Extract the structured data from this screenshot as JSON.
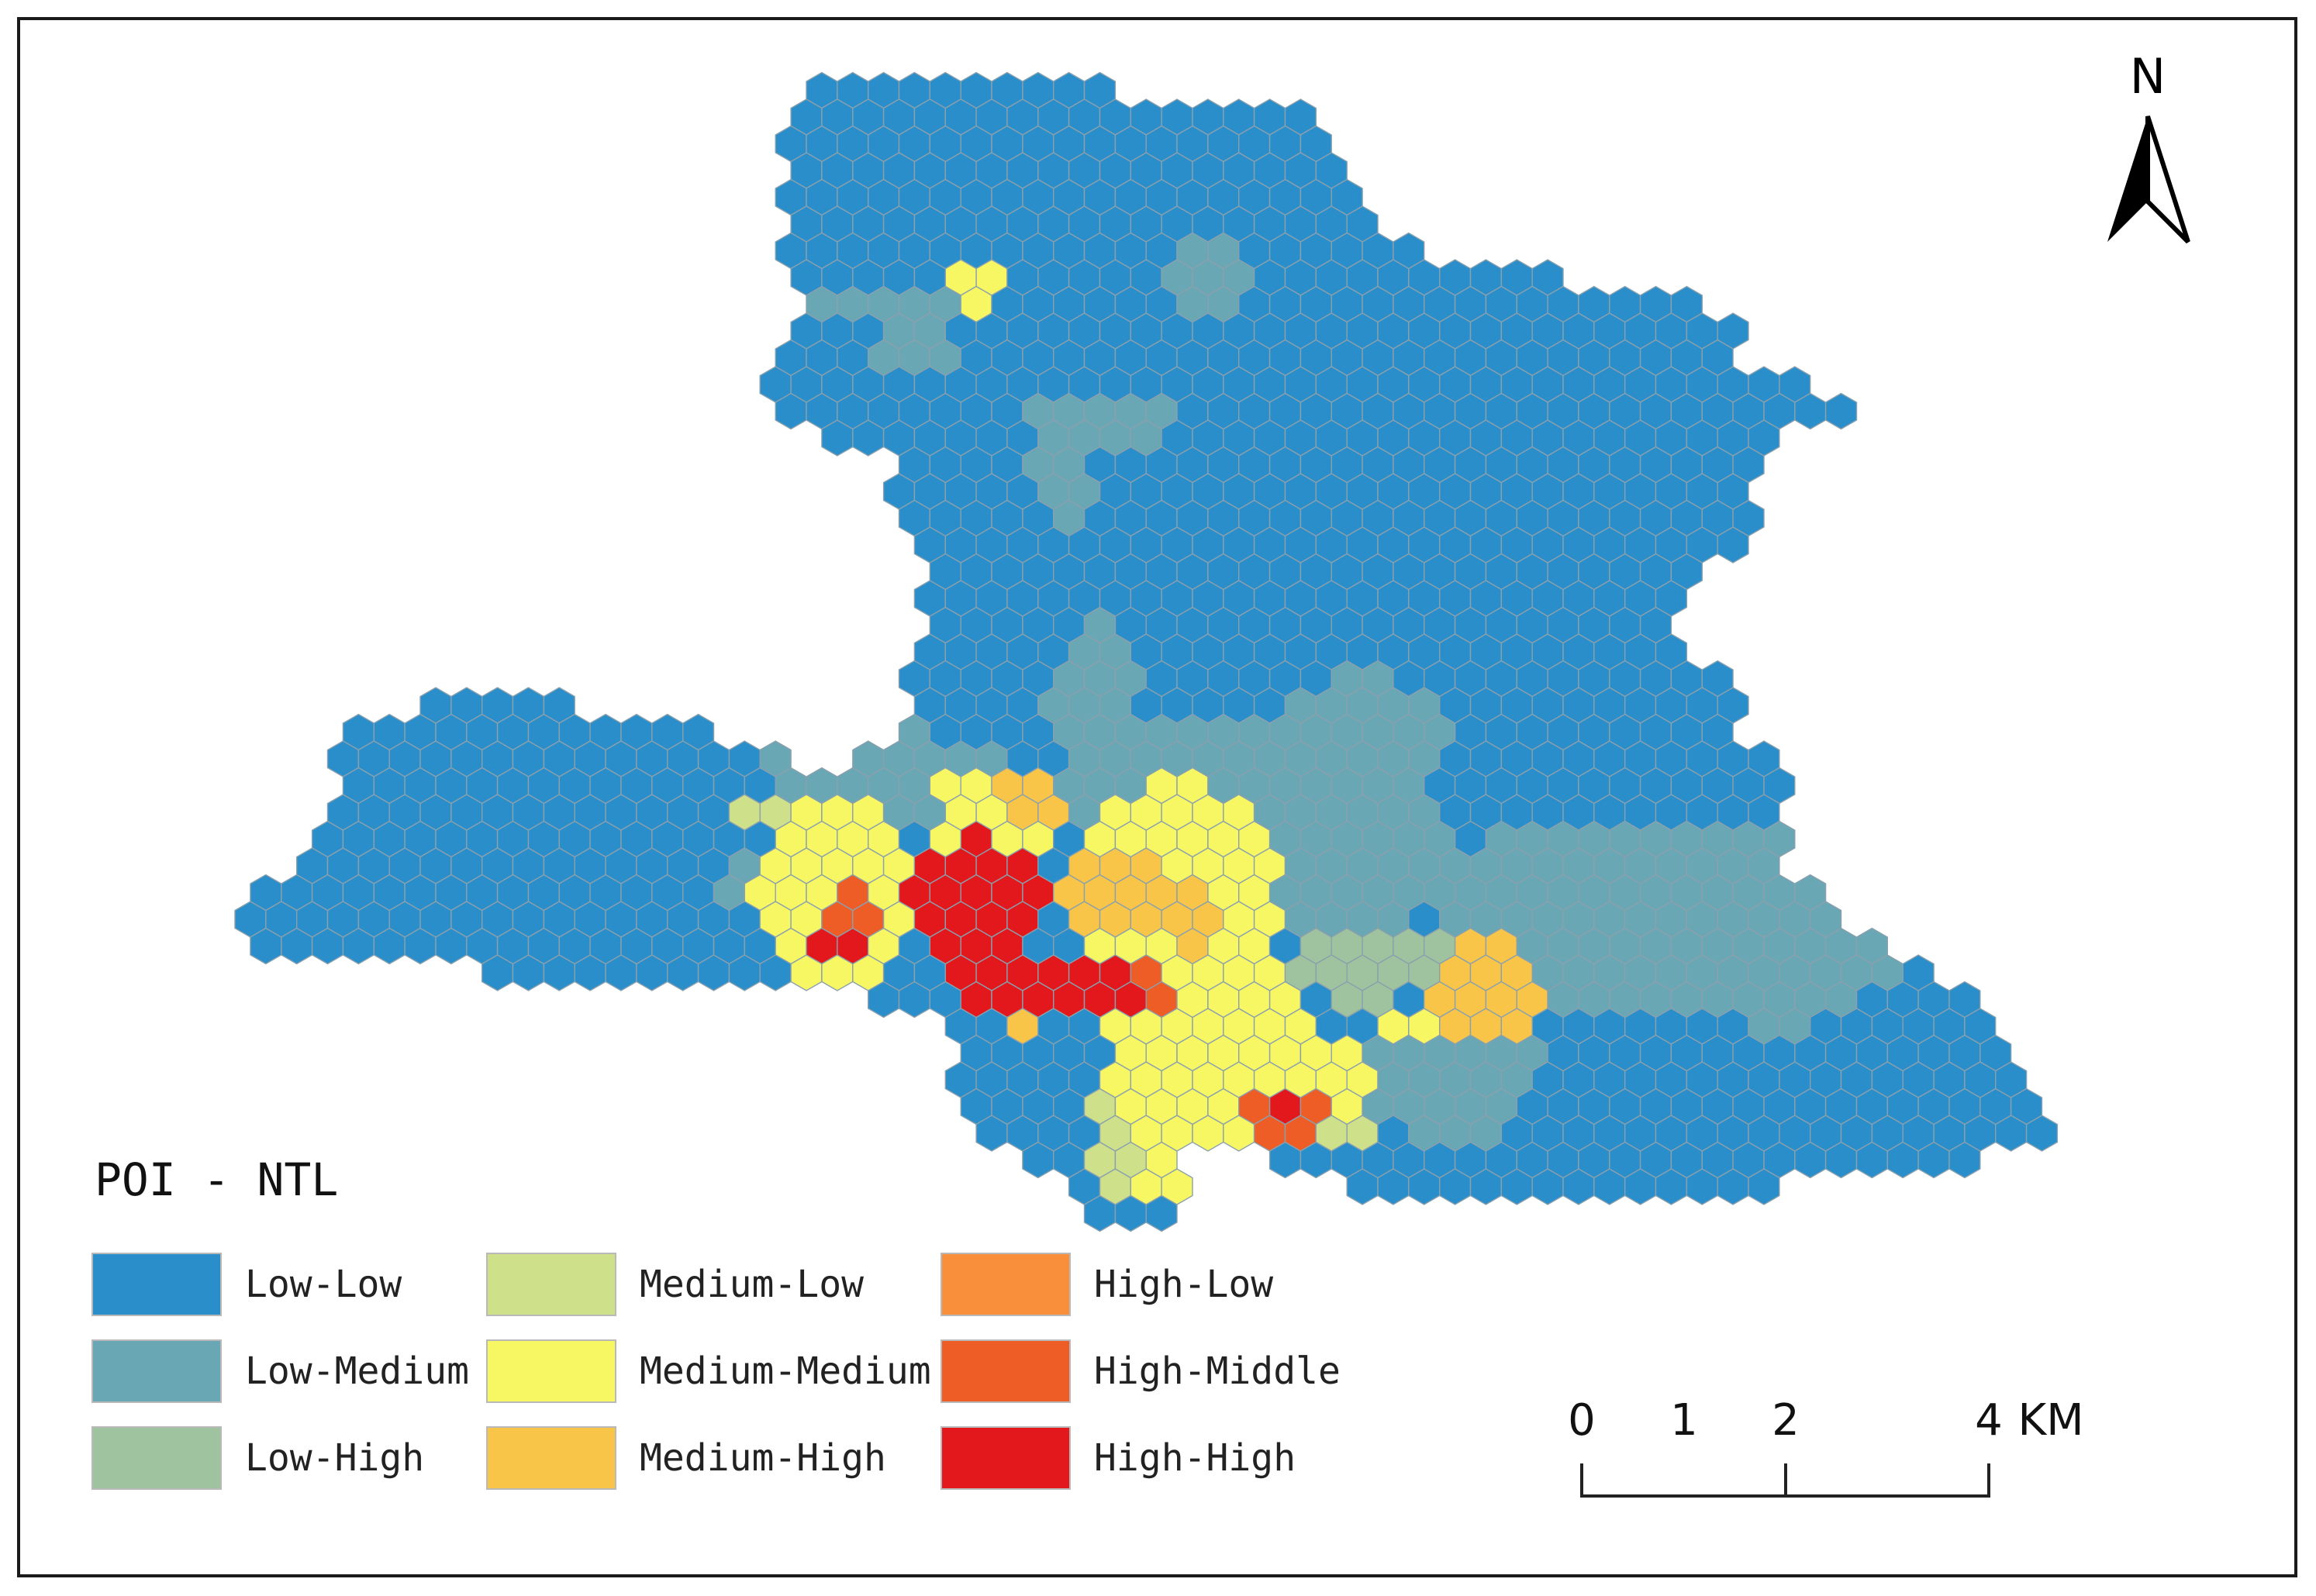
{
  "legend": {
    "title": "POI - NTL",
    "items": [
      {
        "label": "Low-Low",
        "color": "#2a8ecb"
      },
      {
        "label": "Low-Medium",
        "color": "#6aa7b5"
      },
      {
        "label": "Low-High",
        "color": "#9fc39f"
      },
      {
        "label": "Medium-Low",
        "color": "#cfe08a"
      },
      {
        "label": "Medium-Medium",
        "color": "#f7f763"
      },
      {
        "label": "Medium-High",
        "color": "#f8c549"
      },
      {
        "label": "High-Low",
        "color": "#f98f3a"
      },
      {
        "label": "High-Middle",
        "color": "#ef5d27"
      },
      {
        "label": "High-High",
        "color": "#e3181c"
      }
    ]
  },
  "north_arrow": {
    "label": "N"
  },
  "scale_bar": {
    "ticks": [
      "0",
      "1",
      "2",
      "4"
    ],
    "unit": "KM"
  },
  "map_classes": {
    "LL": "Low-Low",
    "LM": "Low-Medium",
    "LH": "Low-High",
    "ML": "Medium-Low",
    "MM": "Medium-Medium",
    "MH": "Medium-High",
    "HL": "High-Low",
    "HM": "High-Middle",
    "HH": "High-High"
  }
}
